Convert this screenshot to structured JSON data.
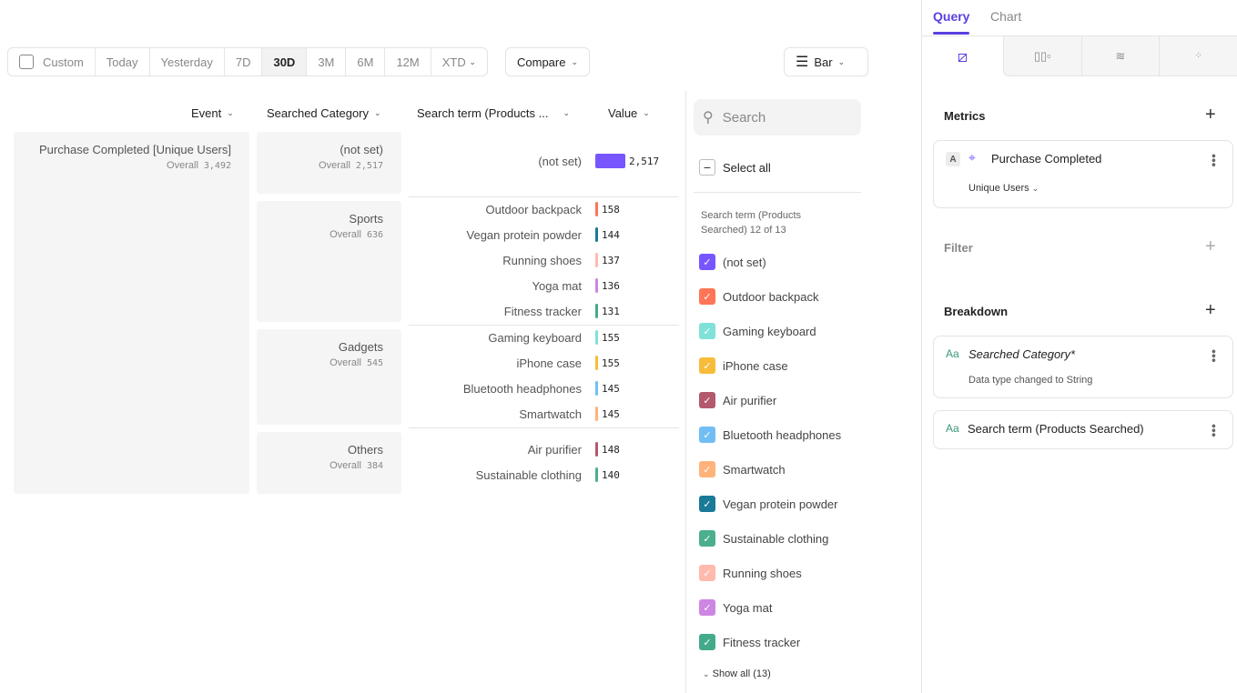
{
  "toolbar": {
    "date_ranges": [
      "Custom",
      "Today",
      "Yesterday",
      "7D",
      "30D",
      "3M",
      "6M",
      "12M",
      "XTD"
    ],
    "active": "30D",
    "compare": "Compare",
    "chart_type": "Bar"
  },
  "columns": {
    "event": "Event",
    "category": "Searched Category",
    "term": "Search term (Products ...",
    "value": "Value"
  },
  "event": {
    "name": "Purchase Completed [Unique Users]",
    "overall_label": "Overall",
    "overall": "3,492"
  },
  "categories": [
    {
      "name": "(not set)",
      "overall": "2,517",
      "terms": [
        {
          "name": "(not set)",
          "value": "2,517",
          "num": 2517,
          "color": "#7856ff"
        }
      ]
    },
    {
      "name": "Sports",
      "overall": "636",
      "terms": [
        {
          "name": "Outdoor backpack",
          "value": "158",
          "num": 158,
          "color": "#ff7557"
        },
        {
          "name": "Vegan protein powder",
          "value": "144",
          "num": 144,
          "color": "#1a7a98"
        },
        {
          "name": "Running shoes",
          "value": "137",
          "num": 137,
          "color": "#ffb9ad"
        },
        {
          "name": "Yoga mat",
          "value": "136",
          "num": 136,
          "color": "#cd86e2"
        },
        {
          "name": "Fitness tracker",
          "value": "131",
          "num": 131,
          "color": "#44aa8c"
        }
      ]
    },
    {
      "name": "Gadgets",
      "overall": "545",
      "terms": [
        {
          "name": "Gaming keyboard",
          "value": "155",
          "num": 155,
          "color": "#80e1d9"
        },
        {
          "name": "iPhone case",
          "value": "155",
          "num": 155,
          "color": "#f8bc3b"
        },
        {
          "name": "Bluetooth headphones",
          "value": "145",
          "num": 145,
          "color": "#72bef4"
        },
        {
          "name": "Smartwatch",
          "value": "145",
          "num": 145,
          "color": "#ffb27a"
        }
      ]
    },
    {
      "name": "Others",
      "overall": "384",
      "terms": [
        {
          "name": "Air purifier",
          "value": "148",
          "num": 148,
          "color": "#b2596e"
        },
        {
          "name": "Sustainable clothing",
          "value": "140",
          "num": 140,
          "color": "#4bae8c"
        }
      ]
    }
  ],
  "legend": {
    "search_placeholder": "Search",
    "select_all": "Select all",
    "heading": "Search term (Products Searched) 12 of 13",
    "items": [
      {
        "label": "(not set)",
        "color": "#7856ff"
      },
      {
        "label": "Outdoor backpack",
        "color": "#ff7557"
      },
      {
        "label": "Gaming keyboard",
        "color": "#80e1d9"
      },
      {
        "label": "iPhone case",
        "color": "#f8bc3b"
      },
      {
        "label": "Air purifier",
        "color": "#b2596e"
      },
      {
        "label": "Bluetooth headphones",
        "color": "#72bef4"
      },
      {
        "label": "Smartwatch",
        "color": "#ffb27a"
      },
      {
        "label": "Vegan protein powder",
        "color": "#1a7a98"
      },
      {
        "label": "Sustainable clothing",
        "color": "#4bae8c"
      },
      {
        "label": "Running shoes",
        "color": "#ffb9ad"
      },
      {
        "label": "Yoga mat",
        "color": "#cd86e2"
      },
      {
        "label": "Fitness tracker",
        "color": "#44aa8c"
      }
    ],
    "show_all": "Show all (13)"
  },
  "panel": {
    "tabs": [
      "Query",
      "Chart"
    ],
    "active_tab": "Query",
    "accent": "#5a3fe0",
    "metrics": "Metrics",
    "metric": {
      "letter": "A",
      "name": "Purchase Completed",
      "measure": "Unique Users"
    },
    "filter": "Filter",
    "breakdown": "Breakdown",
    "breakdowns": [
      {
        "name": "Searched Category*",
        "note": "Data type changed to String"
      },
      {
        "name": "Search term (Products Searched)"
      }
    ]
  }
}
